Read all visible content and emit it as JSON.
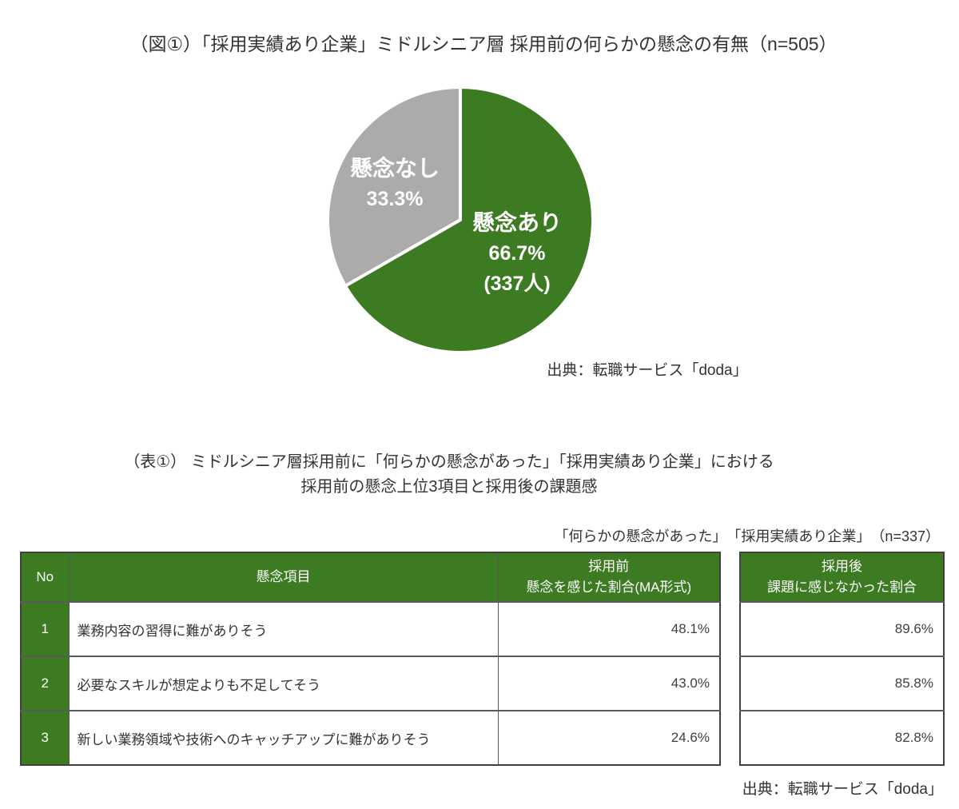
{
  "figure": {
    "source_label": "出典：転職サービス「doda」"
  },
  "table_section": {
    "title_line1": "（表①） ミドルシニア層採用前に「何らかの懸念があった」「採用実績あり企業」における",
    "title_line2": "採用前の懸念上位3項目と採用後の課題感",
    "source_label": "出典：転職サービス「doda」"
  },
  "colors": {
    "accent_green": "#3d7b22",
    "slice_gray": "#ababab",
    "body_text": "#333333",
    "border_dark": "#404040",
    "border_inner": "#595959",
    "label_white": "#ffffff"
  },
  "chart_data": [
    {
      "type": "pie",
      "title": "（図①）「採用実績あり企業」ミドルシニア層 採用前の何らかの懸念の有無（n=505）",
      "n": 505,
      "start_angle_deg": -90,
      "direction": "clockwise",
      "legend": "labels-inside-slices",
      "slices": [
        {
          "label": "懸念あり",
          "value": 66.7,
          "value_label": "66.7%",
          "count": 337,
          "count_label": "(337人)",
          "color": "#3d7b22"
        },
        {
          "label": "懸念なし",
          "value": 33.3,
          "value_label": "33.3%",
          "color": "#ababab"
        }
      ]
    },
    {
      "type": "table",
      "caption": "「何らかの懸念があった」　「採用実績あり企業」　（n=337）",
      "n": 337,
      "columns": [
        {
          "line1": "No"
        },
        {
          "line1": "懸念項目"
        },
        {
          "line1": "採用前",
          "line2": "懸念を感じた割合(MA形式)"
        },
        {
          "line1": "採用後",
          "line2": "課題に感じなかった割合"
        }
      ],
      "rows": [
        [
          "1",
          "業務内容の習得に難がありそう",
          "48.1%",
          "89.6%"
        ],
        [
          "2",
          "必要なスキルが想定よりも不足してそう",
          "43.0%",
          "85.8%"
        ],
        [
          "3",
          "新しい業務領域や技術へのキャッチアップに難がありそう",
          "24.6%",
          "82.8%"
        ]
      ]
    }
  ]
}
